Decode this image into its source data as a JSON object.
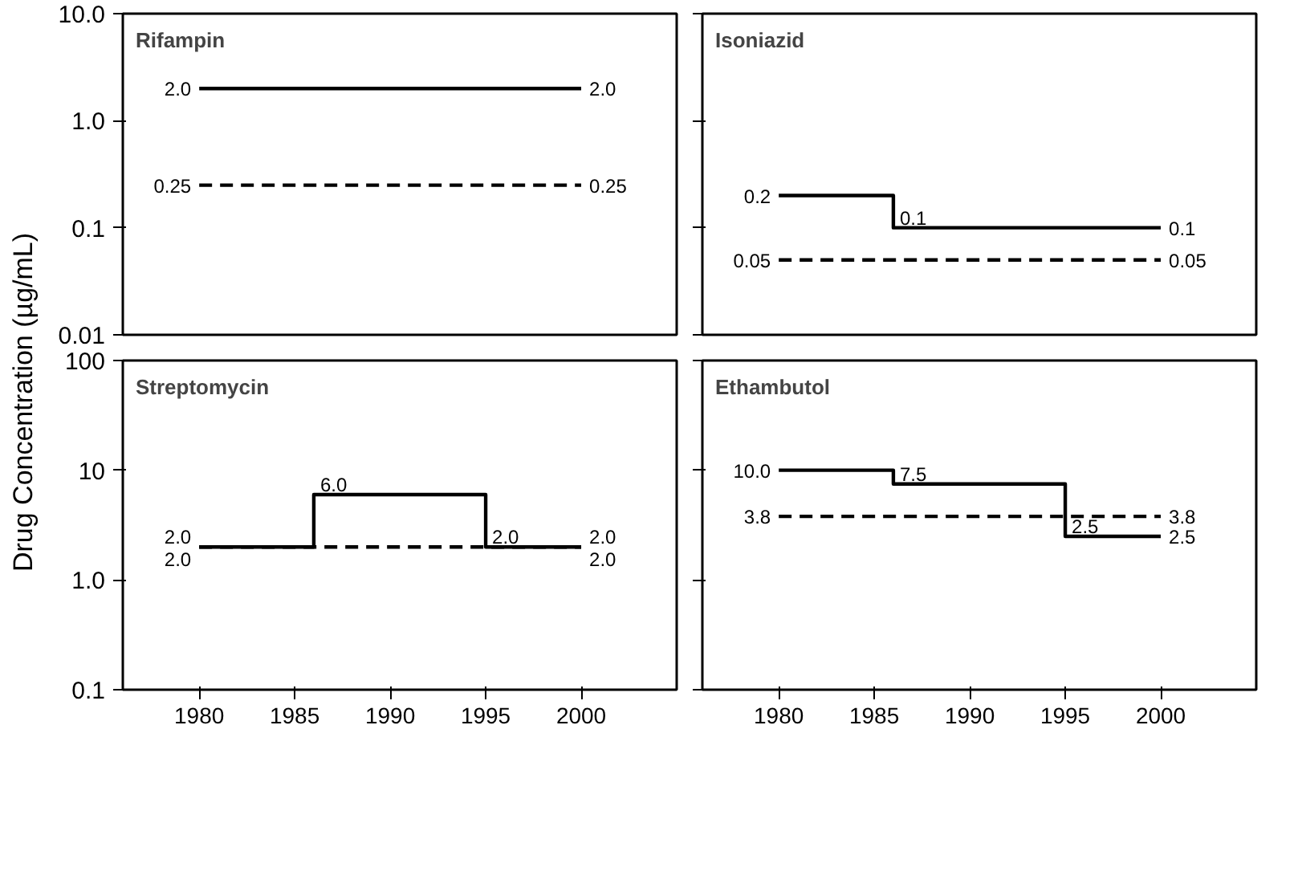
{
  "chart_data": [
    {
      "type": "step",
      "title": "Rifampin",
      "ylabel": "Drug Concentration (µg/mL)",
      "log": "y",
      "xlim": [
        1976,
        2005
      ],
      "xticks": [
        1980,
        1985,
        1990,
        1995,
        2000
      ],
      "ylim": [
        0.01,
        10
      ],
      "yticks": [
        {
          "value": 0.01,
          "label": "0.01"
        },
        {
          "value": 0.1,
          "label": "0.1"
        },
        {
          "value": 1,
          "label": "1.0"
        },
        {
          "value": 10,
          "label": "10.0"
        }
      ],
      "tick_labels": "y",
      "grid": false,
      "series": [
        {
          "x": [
            1980,
            2000
          ],
          "values": [
            2.0,
            2.0
          ],
          "value_labels": [
            "2.0",
            "2.0"
          ],
          "color": "#000000",
          "line_style": "solid"
        },
        {
          "x": [
            1980,
            2000
          ],
          "values": [
            0.25,
            0.25
          ],
          "value_labels": [
            "0.25",
            "0.25"
          ],
          "color": "#000000",
          "line_style": "dashed"
        }
      ]
    },
    {
      "type": "step",
      "title": "Isoniazid",
      "log": "y",
      "xlim": [
        1976,
        2005
      ],
      "xticks": [
        1980,
        1985,
        1990,
        1995,
        2000
      ],
      "ylim": [
        0.01,
        10
      ],
      "yticks": [
        {
          "value": 0.01,
          "label": null
        },
        {
          "value": 0.1,
          "label": null
        },
        {
          "value": 1,
          "label": null
        },
        {
          "value": 10,
          "label": null
        }
      ],
      "tick_labels": false,
      "grid": false,
      "series": [
        {
          "x": [
            1980,
            1986,
            2000
          ],
          "values": [
            0.2,
            0.1,
            0.1
          ],
          "value_labels": [
            "0.2",
            "0.1",
            "0.1"
          ],
          "color": "#000000",
          "line_style": "solid"
        },
        {
          "x": [
            1980,
            2000
          ],
          "values": [
            0.05,
            0.05
          ],
          "value_labels": [
            "0.05",
            "0.05"
          ],
          "color": "#000000",
          "line_style": "dashed"
        }
      ]
    },
    {
      "type": "step",
      "title": "Streptomycin",
      "log": "y",
      "xlim": [
        1976,
        2005
      ],
      "xticks": [
        1980,
        1985,
        1990,
        1995,
        2000
      ],
      "ylim": [
        0.1,
        100
      ],
      "yticks": [
        {
          "value": 0.1,
          "label": "0.1"
        },
        {
          "value": 1,
          "label": "1.0"
        },
        {
          "value": 10,
          "label": "10"
        },
        {
          "value": 100,
          "label": "100"
        }
      ],
      "grid": false,
      "series": [
        {
          "x": [
            1980,
            1986,
            1995,
            2000
          ],
          "values": [
            2.0,
            6.0,
            2.0,
            2.0
          ],
          "value_labels": [
            "2.0",
            "6.0",
            "2.0",
            "2.0"
          ],
          "color": "#000000",
          "line_style": "solid"
        },
        {
          "x": [
            1980,
            2000
          ],
          "values": [
            2.0,
            2.0
          ],
          "value_labels": [
            "2.0",
            "2.0"
          ],
          "color": "#000000",
          "line_style": "dashed"
        }
      ]
    },
    {
      "type": "step",
      "title": "Ethambutol",
      "log": "y",
      "xlim": [
        1976,
        2005
      ],
      "xticks": [
        1980,
        1985,
        1990,
        1995,
        2000
      ],
      "ylim": [
        0.1,
        100
      ],
      "yticks": [
        {
          "value": 0.1,
          "label": null
        },
        {
          "value": 1,
          "label": null
        },
        {
          "value": 10,
          "label": null
        },
        {
          "value": 100,
          "label": null
        }
      ],
      "tick_labels": "x",
      "grid": false,
      "series": [
        {
          "x": [
            1980,
            1986,
            1995,
            2000
          ],
          "values": [
            10.0,
            7.5,
            2.5,
            2.5
          ],
          "value_labels": [
            "10.0",
            "7.5",
            "2.5",
            "2.5"
          ],
          "color": "#000000",
          "line_style": "solid"
        },
        {
          "x": [
            1980,
            2000
          ],
          "values": [
            3.8,
            3.8
          ],
          "value_labels": [
            "3.8",
            "3.8"
          ],
          "color": "#000000",
          "line_style": "dashed"
        }
      ]
    }
  ]
}
